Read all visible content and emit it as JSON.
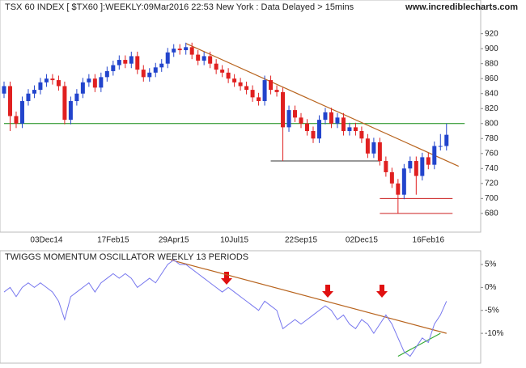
{
  "chart_data": [
    {
      "type": "candlestick",
      "title": "TSX 60 INDEX [ $TX60 ]:WEEKLY:09Mar2016 22:53 New York : Data Delayed > 15mins",
      "source": "www.incrediblecharts.com",
      "categories": [
        null,
        null,
        null,
        null,
        null,
        null,
        null,
        "03Dec14",
        null,
        null,
        null,
        null,
        null,
        null,
        null,
        null,
        null,
        null,
        "17Feb15",
        null,
        null,
        null,
        null,
        null,
        null,
        null,
        null,
        null,
        "29Apr15",
        null,
        null,
        null,
        null,
        null,
        null,
        null,
        null,
        null,
        "10Jul15",
        null,
        null,
        null,
        null,
        null,
        null,
        null,
        null,
        null,
        null,
        "22Sep15",
        null,
        null,
        null,
        null,
        null,
        null,
        null,
        null,
        null,
        "02Dec15",
        null,
        null,
        null,
        null,
        null,
        null,
        null,
        null,
        null,
        null,
        "16Feb16",
        null,
        null,
        null
      ],
      "open": [
        840,
        850,
        810,
        800,
        830,
        840,
        845,
        855,
        860,
        858,
        850,
        805,
        830,
        840,
        855,
        860,
        848,
        862,
        870,
        878,
        885,
        880,
        890,
        872,
        862,
        868,
        875,
        880,
        895,
        900,
        898,
        902,
        892,
        884,
        890,
        880,
        872,
        868,
        860,
        855,
        850,
        845,
        835,
        830,
        858,
        845,
        842,
        795,
        818,
        808,
        800,
        790,
        780,
        805,
        815,
        800,
        808,
        790,
        795,
        790,
        780,
        760,
        775,
        750,
        735,
        720,
        705,
        740,
        750,
        730,
        755,
        745,
        770,
        770
      ],
      "high": [
        856,
        856,
        816,
        836,
        846,
        851,
        861,
        866,
        866,
        864,
        856,
        836,
        846,
        861,
        866,
        866,
        868,
        876,
        884,
        891,
        891,
        896,
        896,
        878,
        874,
        881,
        886,
        901,
        906,
        906,
        908,
        908,
        898,
        896,
        896,
        886,
        878,
        874,
        866,
        861,
        856,
        851,
        841,
        864,
        864,
        851,
        848,
        824,
        824,
        814,
        806,
        796,
        811,
        821,
        821,
        814,
        814,
        801,
        801,
        796,
        786,
        781,
        781,
        756,
        741,
        726,
        746,
        756,
        756,
        761,
        761,
        776,
        786,
        800
      ],
      "low": [
        834,
        790,
        794,
        794,
        824,
        834,
        839,
        849,
        852,
        844,
        799,
        799,
        824,
        834,
        849,
        842,
        842,
        856,
        864,
        872,
        874,
        874,
        866,
        856,
        856,
        862,
        869,
        874,
        889,
        892,
        892,
        886,
        878,
        878,
        874,
        866,
        862,
        854,
        849,
        844,
        839,
        829,
        824,
        824,
        839,
        836,
        750,
        789,
        802,
        794,
        784,
        774,
        774,
        799,
        794,
        794,
        784,
        784,
        784,
        774,
        754,
        754,
        744,
        729,
        714,
        680,
        699,
        734,
        705,
        724,
        739,
        739,
        764,
        764
      ],
      "close": [
        850,
        810,
        800,
        830,
        840,
        845,
        855,
        860,
        858,
        850,
        805,
        830,
        840,
        855,
        860,
        848,
        862,
        870,
        878,
        885,
        880,
        890,
        872,
        862,
        868,
        875,
        880,
        895,
        900,
        898,
        902,
        892,
        884,
        890,
        880,
        872,
        868,
        860,
        855,
        850,
        845,
        835,
        830,
        858,
        845,
        842,
        795,
        818,
        808,
        800,
        790,
        780,
        805,
        815,
        800,
        808,
        790,
        795,
        790,
        780,
        760,
        775,
        750,
        735,
        720,
        705,
        740,
        750,
        730,
        755,
        745,
        770,
        770,
        785
      ],
      "up_color": "#2244cc",
      "down_color": "#e02020",
      "ylim": [
        655,
        965
      ],
      "yticks": [
        680,
        700,
        720,
        740,
        760,
        780,
        800,
        820,
        840,
        860,
        880,
        900,
        920
      ],
      "levels": [
        {
          "value": 800,
          "color": "#118811",
          "x": [
            0,
            76
          ]
        },
        {
          "value": 750,
          "color": "#333333",
          "x": [
            44,
            62
          ]
        },
        {
          "value": 700,
          "color": "#cc2222",
          "x": [
            62,
            74
          ]
        },
        {
          "value": 680,
          "color": "#cc2222",
          "x": [
            62,
            74
          ]
        }
      ],
      "trendlines": [
        {
          "color": "#b8641e",
          "x": [
            30,
            75
          ],
          "values": [
            907,
            743
          ]
        }
      ]
    },
    {
      "type": "line",
      "title": "TWIGGS MOMENTUM OSCILLATOR WEEKLY 13 PERIODS",
      "color": "#7777ee",
      "values": [
        -1,
        0,
        -2,
        0,
        1,
        0,
        1,
        0,
        -1,
        -3,
        -7,
        -2,
        -1,
        0,
        1,
        -1,
        1,
        2,
        3,
        2,
        3,
        2,
        0,
        1,
        2,
        1,
        3,
        5,
        6,
        5,
        5,
        4,
        3,
        2,
        1,
        0,
        -1,
        0,
        -1,
        -2,
        -3,
        -4,
        -5,
        -3,
        -4,
        -5,
        -9,
        -8,
        -7,
        -8,
        -7,
        -6,
        -5,
        -4,
        -5,
        -7,
        -6,
        -8,
        -9,
        -7,
        -8,
        -10,
        -8,
        -6,
        -8,
        -11,
        -14,
        -15,
        -13,
        -11,
        -12,
        -8,
        -6,
        -3
      ],
      "ylim": [
        -16.5,
        8
      ],
      "yticks": [
        {
          "value": 5,
          "label": "5%"
        },
        {
          "value": 0,
          "label": "0%"
        },
        {
          "value": -5,
          "label": "-5%"
        },
        {
          "value": -10,
          "label": "-10%"
        }
      ],
      "trendlines": [
        {
          "color": "#b8641e",
          "x": [
            27.5,
            73
          ],
          "values": [
            6,
            -10
          ]
        },
        {
          "color": "#33aa33",
          "x": [
            65,
            72
          ],
          "values": [
            -15,
            -10
          ]
        }
      ]
    }
  ]
}
